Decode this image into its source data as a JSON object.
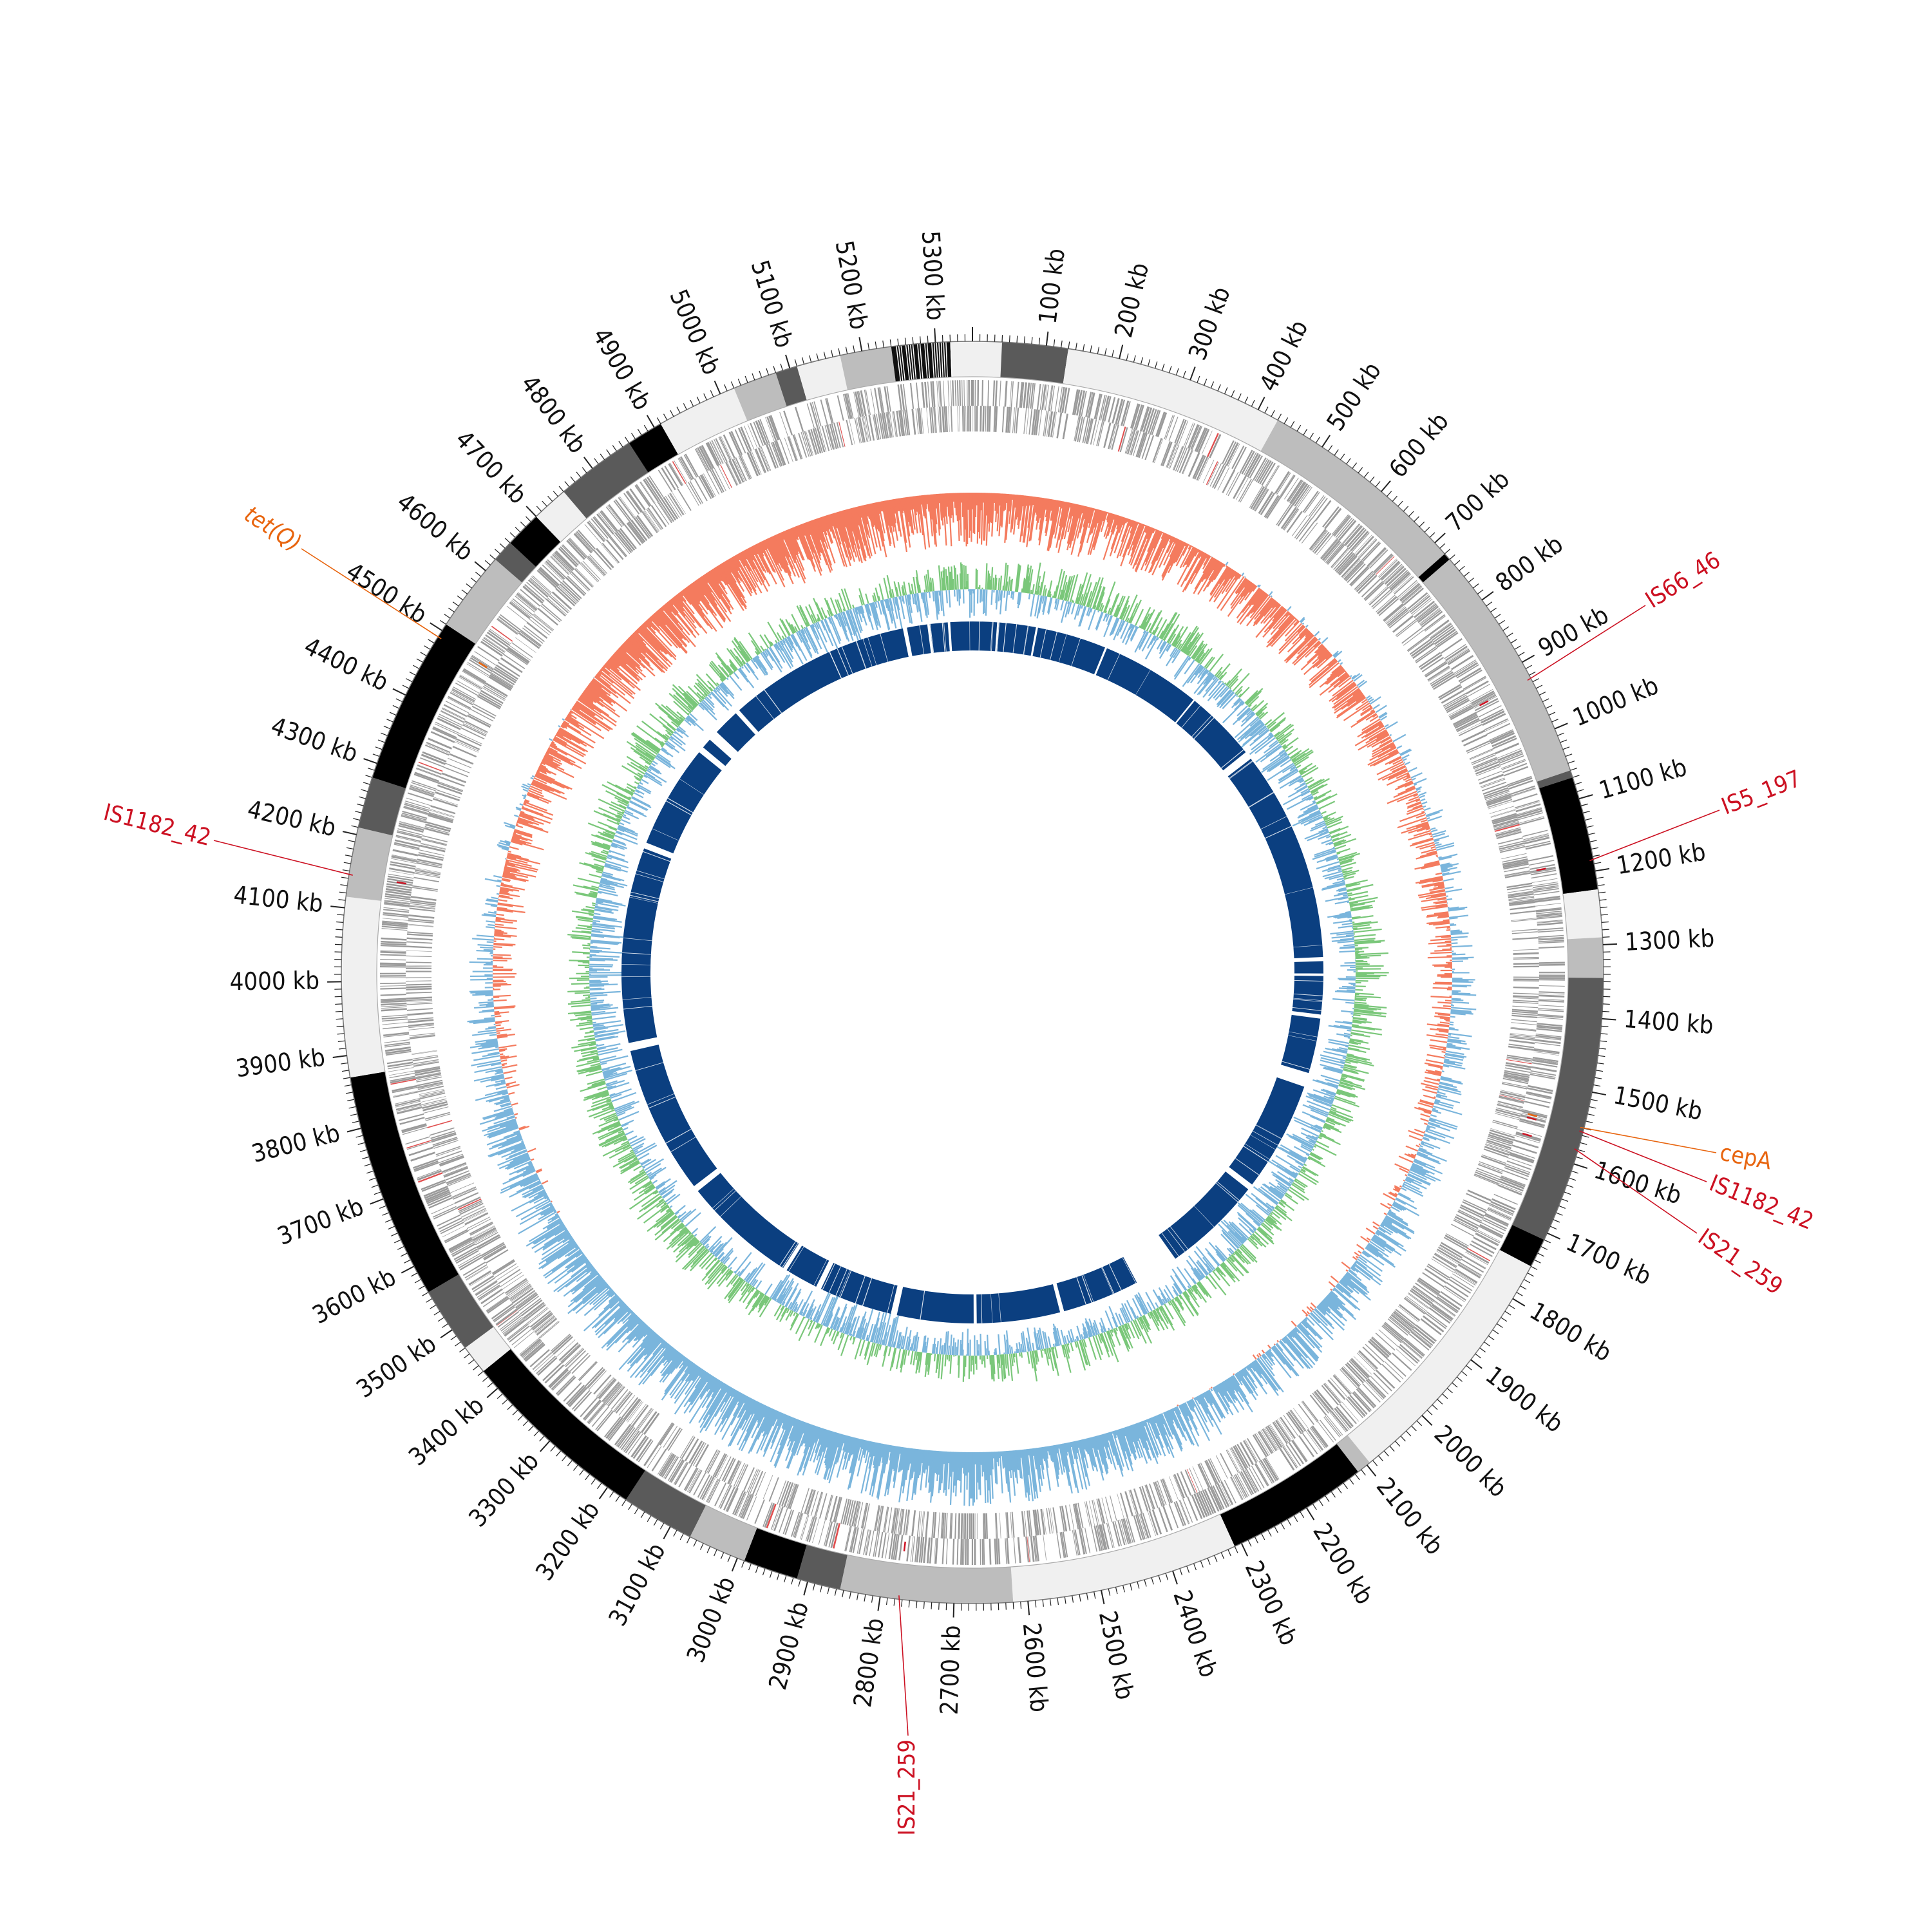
{
  "genome": {
    "length_kb": 5350,
    "tick_labels": [
      {
        "kb": 100,
        "text": "100 kb"
      },
      {
        "kb": 200,
        "text": "200 kb"
      },
      {
        "kb": 300,
        "text": "300 kb"
      },
      {
        "kb": 400,
        "text": "400 kb"
      },
      {
        "kb": 500,
        "text": "500 kb"
      },
      {
        "kb": 600,
        "text": "600 kb"
      },
      {
        "kb": 700,
        "text": "700 kb"
      },
      {
        "kb": 800,
        "text": "800 kb"
      },
      {
        "kb": 900,
        "text": "900 kb"
      },
      {
        "kb": 1000,
        "text": "1000 kb"
      },
      {
        "kb": 1100,
        "text": "1100 kb"
      },
      {
        "kb": 1200,
        "text": "1200 kb"
      },
      {
        "kb": 1300,
        "text": "1300 kb"
      },
      {
        "kb": 1400,
        "text": "1400 kb"
      },
      {
        "kb": 1500,
        "text": "1500 kb"
      },
      {
        "kb": 1600,
        "text": "1600 kb"
      },
      {
        "kb": 1700,
        "text": "1700 kb"
      },
      {
        "kb": 1800,
        "text": "1800 kb"
      },
      {
        "kb": 1900,
        "text": "1900 kb"
      },
      {
        "kb": 2000,
        "text": "2000 kb"
      },
      {
        "kb": 2100,
        "text": "2100 kb"
      },
      {
        "kb": 2200,
        "text": "2200 kb"
      },
      {
        "kb": 2300,
        "text": "2300 kb"
      },
      {
        "kb": 2400,
        "text": "2400 kb"
      },
      {
        "kb": 2500,
        "text": "2500 kb"
      },
      {
        "kb": 2600,
        "text": "2600 kb"
      },
      {
        "kb": 2700,
        "text": "2700 kb"
      },
      {
        "kb": 2800,
        "text": "2800 kb"
      },
      {
        "kb": 2900,
        "text": "2900 kb"
      },
      {
        "kb": 3000,
        "text": "3000 kb"
      },
      {
        "kb": 3100,
        "text": "3100 kb"
      },
      {
        "kb": 3200,
        "text": "3200 kb"
      },
      {
        "kb": 3300,
        "text": "3300 kb"
      },
      {
        "kb": 3400,
        "text": "3400 kb"
      },
      {
        "kb": 3500,
        "text": "3500 kb"
      },
      {
        "kb": 3600,
        "text": "3600 kb"
      },
      {
        "kb": 3700,
        "text": "3700 kb"
      },
      {
        "kb": 3800,
        "text": "3800 kb"
      },
      {
        "kb": 3900,
        "text": "3900 kb"
      },
      {
        "kb": 4000,
        "text": "4000 kb"
      },
      {
        "kb": 4100,
        "text": "4100 kb"
      },
      {
        "kb": 4200,
        "text": "4200 kb"
      },
      {
        "kb": 4300,
        "text": "4300 kb"
      },
      {
        "kb": 4400,
        "text": "4400 kb"
      },
      {
        "kb": 4500,
        "text": "4500 kb"
      },
      {
        "kb": 4600,
        "text": "4600 kb"
      },
      {
        "kb": 4700,
        "text": "4700 kb"
      },
      {
        "kb": 4800,
        "text": "4800 kb"
      },
      {
        "kb": 4900,
        "text": "4900 kb"
      },
      {
        "kb": 5000,
        "text": "5000 kb"
      },
      {
        "kb": 5100,
        "text": "5100 kb"
      },
      {
        "kb": 5200,
        "text": "5200 kb"
      },
      {
        "kb": 5300,
        "text": "5300 kb"
      }
    ]
  },
  "contigs": [
    {
      "start": 0,
      "end": 40,
      "shade": "#f0f0f0"
    },
    {
      "start": 40,
      "end": 130,
      "shade": "#5a5a5a"
    },
    {
      "start": 130,
      "end": 430,
      "shade": "#f0f0f0"
    },
    {
      "start": 430,
      "end": 720,
      "shade": "#bdbdbd"
    },
    {
      "start": 720,
      "end": 730,
      "shade": "#000000"
    },
    {
      "start": 730,
      "end": 1060,
      "shade": "#bdbdbd"
    },
    {
      "start": 1060,
      "end": 1070,
      "shade": "#5a5a5a"
    },
    {
      "start": 1070,
      "end": 1225,
      "shade": "#000000"
    },
    {
      "start": 1225,
      "end": 1290,
      "shade": "#f0f0f0"
    },
    {
      "start": 1290,
      "end": 1345,
      "shade": "#bdbdbd"
    },
    {
      "start": 1345,
      "end": 1710,
      "shade": "#5a5a5a"
    },
    {
      "start": 1710,
      "end": 1750,
      "shade": "#000000"
    },
    {
      "start": 1750,
      "end": 2095,
      "shade": "#f0f0f0"
    },
    {
      "start": 2095,
      "end": 2115,
      "shade": "#bdbdbd"
    },
    {
      "start": 2115,
      "end": 2310,
      "shade": "#000000"
    },
    {
      "start": 2310,
      "end": 2620,
      "shade": "#f0f0f0"
    },
    {
      "start": 2620,
      "end": 2855,
      "shade": "#bdbdbd"
    },
    {
      "start": 2855,
      "end": 2915,
      "shade": "#5a5a5a"
    },
    {
      "start": 2915,
      "end": 2990,
      "shade": "#000000"
    },
    {
      "start": 2990,
      "end": 3070,
      "shade": "#bdbdbd"
    },
    {
      "start": 3070,
      "end": 3170,
      "shade": "#5a5a5a"
    },
    {
      "start": 3170,
      "end": 3430,
      "shade": "#000000"
    },
    {
      "start": 3430,
      "end": 3470,
      "shade": "#f0f0f0"
    },
    {
      "start": 3470,
      "end": 3560,
      "shade": "#5a5a5a"
    },
    {
      "start": 3560,
      "end": 3870,
      "shade": "#000000"
    },
    {
      "start": 3870,
      "end": 4115,
      "shade": "#f0f0f0"
    },
    {
      "start": 4115,
      "end": 4210,
      "shade": "#bdbdbd"
    },
    {
      "start": 4210,
      "end": 4280,
      "shade": "#5a5a5a"
    },
    {
      "start": 4280,
      "end": 4510,
      "shade": "#000000"
    },
    {
      "start": 4510,
      "end": 4620,
      "shade": "#bdbdbd"
    },
    {
      "start": 4620,
      "end": 4650,
      "shade": "#5a5a5a"
    },
    {
      "start": 4650,
      "end": 4700,
      "shade": "#000000"
    },
    {
      "start": 4700,
      "end": 4750,
      "shade": "#f0f0f0"
    },
    {
      "start": 4750,
      "end": 4860,
      "shade": "#5a5a5a"
    },
    {
      "start": 4860,
      "end": 4910,
      "shade": "#000000"
    },
    {
      "start": 4910,
      "end": 5020,
      "shade": "#f0f0f0"
    },
    {
      "start": 5020,
      "end": 5080,
      "shade": "#bdbdbd"
    },
    {
      "start": 5080,
      "end": 5110,
      "shade": "#5a5a5a"
    },
    {
      "start": 5110,
      "end": 5170,
      "shade": "#f0f0f0"
    },
    {
      "start": 5170,
      "end": 5240,
      "shade": "#bdbdbd"
    },
    {
      "start": 5240,
      "end": 5320,
      "shade": "#111111"
    },
    {
      "start": 5320,
      "end": 5350,
      "shade": "#f0f0f0"
    }
  ],
  "annotations": [
    {
      "kb": 4490,
      "text": "tet(Q)",
      "color": "#e8650f",
      "italic": true
    },
    {
      "kb": 925,
      "text": "IS66_46",
      "color": "#cc1122",
      "italic": false
    },
    {
      "kb": 1185,
      "text": "IS5_197",
      "color": "#cc1122",
      "italic": false
    },
    {
      "kb": 1550,
      "text": "cepA",
      "color": "#e8650f",
      "italic": false
    },
    {
      "kb": 1555,
      "text": "IS1182_42",
      "color": "#cc1122",
      "italic": false
    },
    {
      "kb": 1580,
      "text": "IS21_259",
      "color": "#cc1122",
      "italic": false
    },
    {
      "kb": 2775,
      "text": "IS21_259",
      "color": "#cc1122",
      "italic": false
    },
    {
      "kb": 4145,
      "text": "IS1182_42",
      "color": "#cc1122",
      "italic": false
    }
  ],
  "blast_gaps": [
    {
      "start": 1585,
      "end": 1620
    },
    {
      "start": 1890,
      "end": 1905
    },
    {
      "start": 2150,
      "end": 2260
    },
    {
      "start": 2450,
      "end": 2460
    },
    {
      "start": 2665,
      "end": 2672
    },
    {
      "start": 2860,
      "end": 2875
    },
    {
      "start": 3055,
      "end": 3068
    },
    {
      "start": 3150,
      "end": 3160
    },
    {
      "start": 3440,
      "end": 3455
    },
    {
      "start": 3820,
      "end": 3840
    },
    {
      "start": 4320,
      "end": 4335
    },
    {
      "start": 4590,
      "end": 4605
    },
    {
      "start": 4630,
      "end": 4655
    },
    {
      "start": 4720,
      "end": 4730
    },
    {
      "start": 5180,
      "end": 5190
    },
    {
      "start": 5240,
      "end": 5246
    },
    {
      "start": 5290,
      "end": 5296
    },
    {
      "start": 60,
      "end": 64
    },
    {
      "start": 155,
      "end": 160
    },
    {
      "start": 330,
      "end": 335
    },
    {
      "start": 580,
      "end": 584
    },
    {
      "start": 760,
      "end": 780
    },
    {
      "start": 1300,
      "end": 1310
    },
    {
      "start": 1340,
      "end": 1346
    },
    {
      "start": 1440,
      "end": 1450
    }
  ],
  "colors": {
    "gc_content_positive": "#7ac77a",
    "gc_content_negative": "#7ab5dc",
    "gc_skew_negative": "#f47b5e",
    "gc_skew_positive": "#7ab5dc",
    "cds": "#9a9a9a",
    "rna": "#e05050",
    "blast": "#0b3f80"
  }
}
